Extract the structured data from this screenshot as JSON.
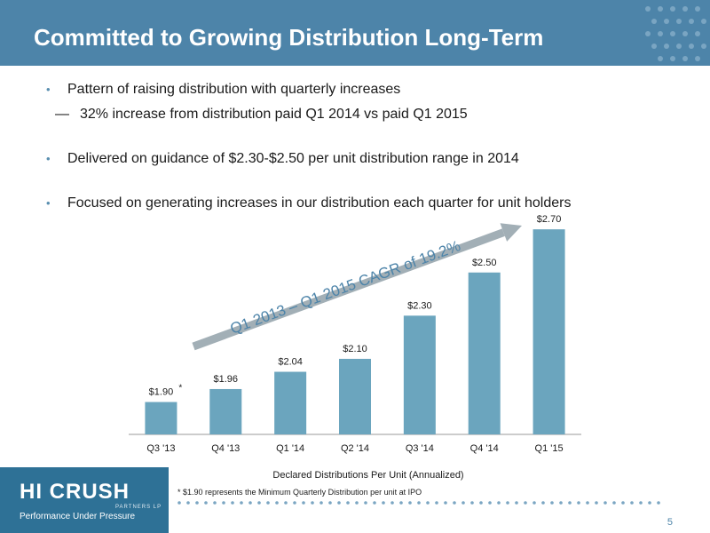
{
  "slide": {
    "title": "Committed to Growing Distribution Long-Term",
    "page_number": "5"
  },
  "bullets": [
    {
      "text": "Pattern of raising distribution with quarterly increases"
    },
    {
      "text": "Delivered on guidance of $2.30-$2.50 per unit distribution range in 2014"
    },
    {
      "text": "Focused on generating increases in our distribution each quarter for unit holders"
    }
  ],
  "sub_bullet": {
    "dash": "—",
    "text": "32% increase from distribution paid Q1 2014 vs paid Q1 2015"
  },
  "footnote": "* $1.90 represents the Minimum Quarterly Distribution per unit at IPO",
  "logo": {
    "name": "HI CRUSH",
    "subtitle": "PARTNERS LP",
    "tagline": "Performance Under Pressure"
  },
  "colors": {
    "header": "#4d84a9",
    "bar": "#6ba5be",
    "arrow": "#a2afb6",
    "logo_bg": "#2e7196"
  },
  "chart_data": {
    "type": "bar",
    "categories": [
      "Q3 '13",
      "Q4 '13",
      "Q1 '14",
      "Q2 '14",
      "Q3 '14",
      "Q4 '14",
      "Q1 '15"
    ],
    "values": [
      1.9,
      1.96,
      2.04,
      2.1,
      2.3,
      2.5,
      2.7
    ],
    "data_labels": [
      "$1.90",
      "$1.96",
      "$2.04",
      "$2.10",
      "$2.30",
      "$2.50",
      "$2.70"
    ],
    "first_label_marker": "*",
    "xlabel": "Declared Distributions Per Unit (Annualized)",
    "ylabel": "",
    "ylim": [
      1.75,
      2.75
    ],
    "grid": false,
    "annotation": "Q1 2013 – Q1 2015 CAGR of 19.2%"
  }
}
